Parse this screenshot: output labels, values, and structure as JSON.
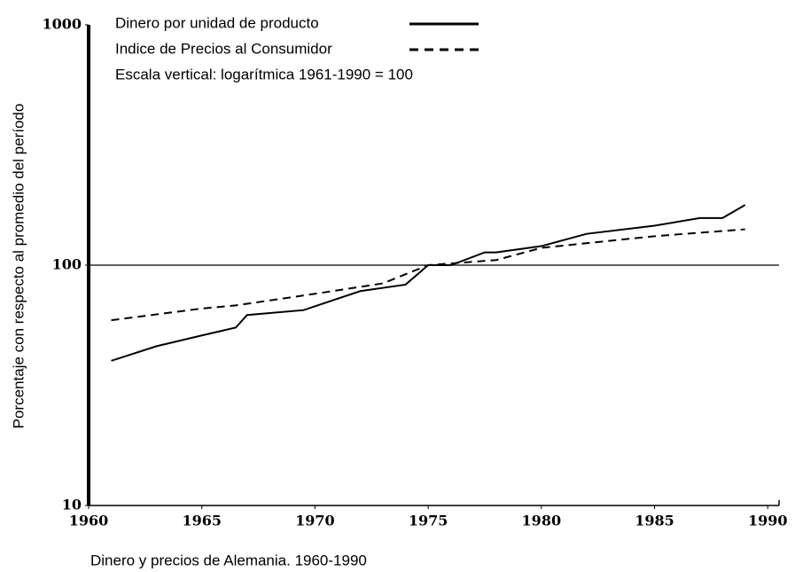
{
  "chart_data": {
    "type": "line",
    "title": "Dinero y precios de Alemania. 1960-1990",
    "y_label": "Porcentaje con respecto al promedio del período",
    "annotation": "Escala vertical: logarítmica 1961-1990 = 100",
    "log_y": true,
    "xlim": [
      1960,
      1990.5
    ],
    "xticks": [
      1960,
      1965,
      1970,
      1975,
      1980,
      1985,
      1990
    ],
    "ylim": [
      10,
      1000
    ],
    "yticks": [
      10,
      100,
      1000
    ],
    "reference_line": 100,
    "series": [
      {
        "name": "Dinero por unidad de producto",
        "color": "#000000",
        "style": "solid",
        "x": [
          1961,
          1963,
          1965,
          1966.5,
          1967,
          1969.5,
          1972,
          1974,
          1975,
          1976,
          1977.5,
          1978,
          1980,
          1982,
          1985,
          1987,
          1988,
          1989
        ],
        "values": [
          40,
          46,
          51,
          55,
          62,
          65,
          78,
          83,
          100,
          100,
          113,
          113,
          120,
          135,
          146,
          157,
          157,
          178
        ]
      },
      {
        "name": "Indice de Precios al Consumidor",
        "color": "#000000",
        "style": "dashed",
        "x": [
          1961,
          1965,
          1966.5,
          1970,
          1973,
          1975,
          1978,
          1980,
          1985,
          1989
        ],
        "values": [
          59,
          66,
          68,
          76,
          84,
          100,
          105,
          118,
          132,
          141
        ]
      }
    ]
  }
}
